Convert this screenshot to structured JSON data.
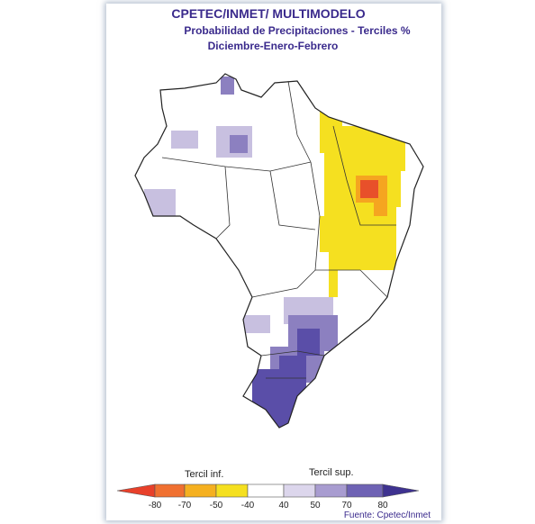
{
  "header": {
    "title": "CPETEC/INMET/ MULTIMODELO",
    "subtitle": "Probabilidad de Precipitaciones - Terciles %",
    "period": "Diciembre-Enero-Febrero"
  },
  "legend": {
    "lower_label": "Tercil inf.",
    "upper_label": "Tercil sup.",
    "ticks": [
      -80,
      -70,
      -50,
      -40,
      40,
      50,
      70,
      80
    ]
  },
  "source": "Fuente: Cpetec/Inmet"
}
